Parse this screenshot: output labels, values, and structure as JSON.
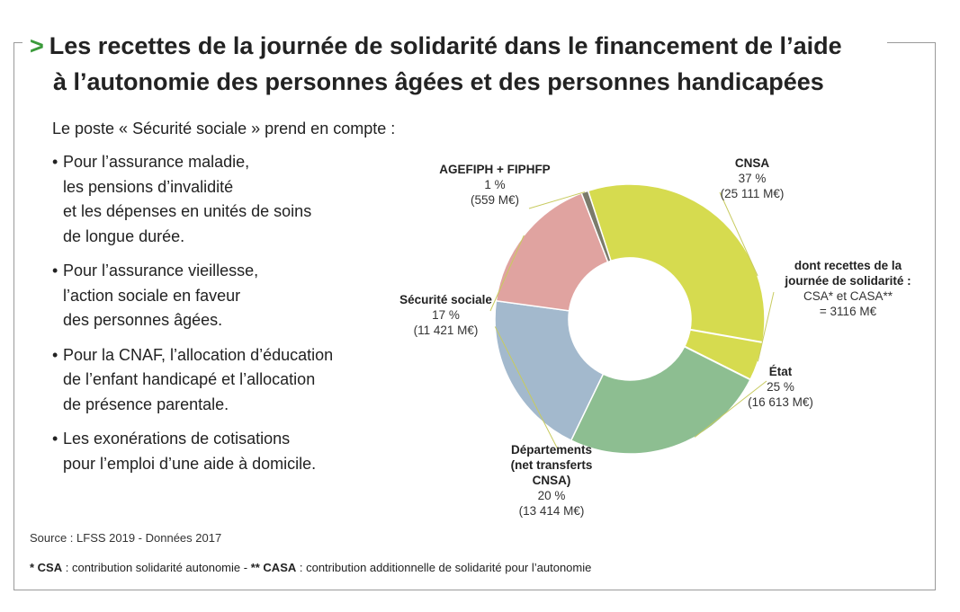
{
  "title": {
    "chevron": ">",
    "line1": "Les recettes de la journée de solidarité dans le financement de l’aide",
    "line2": "à l’autonomie des personnes âgées et des personnes handicapées"
  },
  "intro": "Le poste « Sécurité sociale » prend en compte :",
  "bullets": [
    [
      "Pour l’assurance maladie,",
      "les pensions d’invalidité",
      "et les dépenses en unités de soins",
      "de longue durée."
    ],
    [
      "Pour l’assurance vieillesse,",
      "l’action sociale en faveur",
      "des personnes âgées."
    ],
    [
      "Pour la CNAF, l’allocation d’éducation",
      "de l’enfant handicapé et l’allocation",
      "de présence parentale."
    ],
    [
      "Les exonérations de cotisations",
      "pour l’emploi d’une aide à domicile."
    ]
  ],
  "source": "Source : LFSS 2019 - Données 2017",
  "footnote": {
    "a_key": "* CSA",
    "a_text": " : contribution solidarité autonomie - ",
    "b_key": "** CASA",
    "b_text": " : contribution additionnelle de solidarité pour l’autonomie"
  },
  "chart_data": {
    "type": "pie",
    "donut": true,
    "slices": [
      {
        "name": "CNSA",
        "percent_label": "37 %",
        "amount_label": "(25 111 M€)",
        "value": 25111,
        "color": "#d6db4f"
      },
      {
        "name": "État",
        "percent_label": "25 %",
        "amount_label": "(16 613 M€)",
        "value": 16613,
        "color": "#8dbe91"
      },
      {
        "name": "Départements (net transferts CNSA)",
        "name_lines": [
          "Départements",
          "(net transferts",
          "CNSA)"
        ],
        "percent_label": "20 %",
        "amount_label": "(13 414 M€)",
        "value": 13414,
        "color": "#a3b9cd"
      },
      {
        "name": "Sécurité sociale",
        "percent_label": "17 %",
        "amount_label": "(11 421 M€)",
        "value": 11421,
        "color": "#e0a3a0"
      },
      {
        "name": "AGEFIPH + FIPHFP",
        "percent_label": "1 %",
        "amount_label": "(559 M€)",
        "value": 559,
        "color": "#7b7b6b"
      }
    ],
    "annotation": {
      "lines": [
        "dont recettes de la",
        "journée de solidarité :",
        "CSA* et CASA**",
        "= 3116 M€"
      ],
      "value": 3116
    }
  }
}
